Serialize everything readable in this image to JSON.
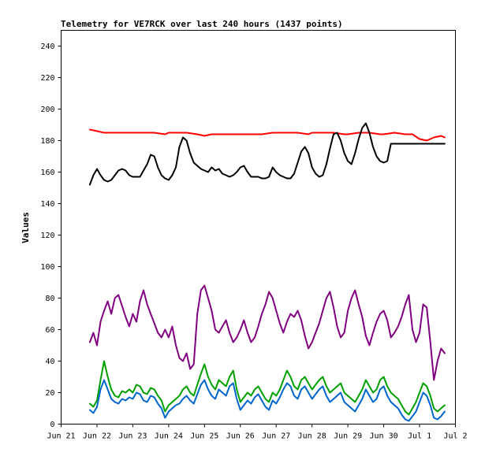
{
  "chart_data": {
    "type": "line",
    "title": "Telemetry for VE7RCK over last 240 hours (1437 points)",
    "xlabel": "",
    "ylabel": "Values",
    "ylim": [
      0,
      250
    ],
    "yticks": [
      0,
      20,
      40,
      60,
      80,
      100,
      120,
      140,
      160,
      180,
      200,
      220,
      240
    ],
    "xlim": [
      0,
      11
    ],
    "xticks": [
      {
        "x": 0,
        "label": "Jun 21"
      },
      {
        "x": 1,
        "label": "Jun 22"
      },
      {
        "x": 2,
        "label": "Jun 23"
      },
      {
        "x": 3,
        "label": "Jun 24"
      },
      {
        "x": 4,
        "label": "Jun 25"
      },
      {
        "x": 5,
        "label": "Jun 26"
      },
      {
        "x": 6,
        "label": "Jun 27"
      },
      {
        "x": 7,
        "label": "Jun 28"
      },
      {
        "x": 8,
        "label": "Jun 29"
      },
      {
        "x": 9,
        "label": "Jun 30"
      },
      {
        "x": 10,
        "label": "Jul 1"
      },
      {
        "x": 11,
        "label": "Jul 2"
      }
    ],
    "grid": false,
    "legend": "none",
    "series": [
      {
        "color": "#ff0000",
        "x": [
          0.8,
          1.0,
          1.2,
          1.5,
          1.8,
          2.0,
          2.3,
          2.6,
          2.9,
          3.0,
          3.2,
          3.5,
          3.8,
          4.0,
          4.2,
          4.5,
          4.8,
          5.0,
          5.3,
          5.6,
          5.9,
          6.0,
          6.3,
          6.6,
          6.9,
          7.0,
          7.3,
          7.6,
          7.9,
          8.0,
          8.3,
          8.6,
          8.9,
          9.0,
          9.3,
          9.6,
          9.8,
          10.0,
          10.2,
          10.4,
          10.6,
          10.7
        ],
        "y": [
          187,
          186,
          185,
          185,
          185,
          185,
          185,
          185,
          184,
          185,
          185,
          185,
          184,
          183,
          184,
          184,
          184,
          184,
          184,
          184,
          185,
          185,
          185,
          185,
          184,
          185,
          185,
          185,
          184,
          184,
          185,
          185,
          184,
          184,
          185,
          184,
          184,
          181,
          180,
          182,
          183,
          182
        ]
      },
      {
        "color": "#000000",
        "x": [
          0.8,
          0.9,
          1.0,
          1.1,
          1.2,
          1.3,
          1.4,
          1.5,
          1.6,
          1.7,
          1.8,
          1.9,
          2.0,
          2.1,
          2.2,
          2.3,
          2.4,
          2.5,
          2.6,
          2.7,
          2.8,
          2.9,
          3.0,
          3.1,
          3.2,
          3.3,
          3.4,
          3.5,
          3.6,
          3.7,
          3.8,
          3.9,
          4.0,
          4.1,
          4.2,
          4.3,
          4.4,
          4.5,
          4.6,
          4.7,
          4.8,
          4.9,
          5.0,
          5.1,
          5.2,
          5.3,
          5.4,
          5.5,
          5.6,
          5.7,
          5.8,
          5.9,
          6.0,
          6.1,
          6.2,
          6.3,
          6.4,
          6.5,
          6.6,
          6.7,
          6.8,
          6.9,
          7.0,
          7.1,
          7.2,
          7.3,
          7.4,
          7.5,
          7.6,
          7.7,
          7.8,
          7.9,
          8.0,
          8.1,
          8.2,
          8.3,
          8.4,
          8.5,
          8.6,
          8.7,
          8.8,
          8.9,
          9.0,
          9.1,
          9.2,
          9.3,
          9.4,
          9.5,
          9.6,
          9.7,
          9.8,
          9.9,
          10.0,
          10.1,
          10.2,
          10.3,
          10.4,
          10.5,
          10.6,
          10.7
        ],
        "y": [
          152,
          158,
          162,
          158,
          155,
          154,
          155,
          158,
          161,
          162,
          161,
          158,
          157,
          157,
          157,
          161,
          165,
          171,
          170,
          163,
          158,
          156,
          155,
          158,
          163,
          176,
          182,
          180,
          172,
          166,
          164,
          162,
          161,
          160,
          163,
          161,
          162,
          159,
          158,
          157,
          158,
          160,
          163,
          164,
          160,
          157,
          157,
          157,
          156,
          156,
          157,
          163,
          160,
          158,
          157,
          156,
          156,
          159,
          166,
          173,
          176,
          172,
          163,
          159,
          157,
          158,
          165,
          175,
          184,
          185,
          180,
          172,
          167,
          165,
          172,
          181,
          188,
          191,
          185,
          176,
          170,
          167,
          166,
          167,
          178,
          178,
          178,
          178,
          178,
          178,
          178,
          178,
          178,
          178,
          178,
          178,
          178,
          178,
          178,
          178
        ]
      },
      {
        "color": "#800080",
        "x": [
          0.8,
          0.9,
          1.0,
          1.1,
          1.2,
          1.3,
          1.4,
          1.5,
          1.6,
          1.7,
          1.8,
          1.9,
          2.0,
          2.1,
          2.2,
          2.3,
          2.4,
          2.5,
          2.6,
          2.7,
          2.8,
          2.9,
          3.0,
          3.1,
          3.2,
          3.3,
          3.4,
          3.5,
          3.6,
          3.7,
          3.8,
          3.9,
          4.0,
          4.1,
          4.2,
          4.3,
          4.4,
          4.5,
          4.6,
          4.7,
          4.8,
          4.9,
          5.0,
          5.1,
          5.2,
          5.3,
          5.4,
          5.5,
          5.6,
          5.7,
          5.8,
          5.9,
          6.0,
          6.1,
          6.2,
          6.3,
          6.4,
          6.5,
          6.6,
          6.7,
          6.8,
          6.9,
          7.0,
          7.1,
          7.2,
          7.3,
          7.4,
          7.5,
          7.6,
          7.7,
          7.8,
          7.9,
          8.0,
          8.1,
          8.2,
          8.3,
          8.4,
          8.5,
          8.6,
          8.7,
          8.8,
          8.9,
          9.0,
          9.1,
          9.2,
          9.3,
          9.4,
          9.5,
          9.6,
          9.7,
          9.8,
          9.9,
          10.0,
          10.1,
          10.2,
          10.3,
          10.4,
          10.5,
          10.6,
          10.7
        ],
        "y": [
          52,
          58,
          50,
          65,
          72,
          78,
          70,
          80,
          82,
          75,
          68,
          62,
          70,
          65,
          78,
          85,
          76,
          70,
          64,
          58,
          55,
          60,
          55,
          62,
          50,
          42,
          40,
          45,
          35,
          38,
          70,
          85,
          88,
          80,
          72,
          60,
          58,
          62,
          66,
          58,
          52,
          55,
          60,
          66,
          58,
          52,
          55,
          62,
          70,
          76,
          84,
          80,
          72,
          64,
          58,
          65,
          70,
          68,
          72,
          66,
          56,
          48,
          52,
          58,
          64,
          72,
          80,
          84,
          74,
          62,
          55,
          58,
          72,
          80,
          85,
          76,
          68,
          56,
          50,
          58,
          65,
          70,
          72,
          66,
          55,
          58,
          62,
          68,
          76,
          82,
          60,
          52,
          58,
          76,
          74,
          52,
          28,
          40,
          48,
          45
        ]
      },
      {
        "color": "#00a000",
        "x": [
          0.8,
          0.9,
          1.0,
          1.1,
          1.2,
          1.3,
          1.4,
          1.5,
          1.6,
          1.7,
          1.8,
          1.9,
          2.0,
          2.1,
          2.2,
          2.3,
          2.4,
          2.5,
          2.6,
          2.7,
          2.8,
          2.9,
          3.0,
          3.1,
          3.2,
          3.3,
          3.4,
          3.5,
          3.6,
          3.7,
          3.8,
          3.9,
          4.0,
          4.1,
          4.2,
          4.3,
          4.4,
          4.5,
          4.6,
          4.7,
          4.8,
          4.9,
          5.0,
          5.1,
          5.2,
          5.3,
          5.4,
          5.5,
          5.6,
          5.7,
          5.8,
          5.9,
          6.0,
          6.1,
          6.2,
          6.3,
          6.4,
          6.5,
          6.6,
          6.7,
          6.8,
          6.9,
          7.0,
          7.1,
          7.2,
          7.3,
          7.4,
          7.5,
          7.6,
          7.7,
          7.8,
          7.9,
          8.0,
          8.1,
          8.2,
          8.3,
          8.4,
          8.5,
          8.6,
          8.7,
          8.8,
          8.9,
          9.0,
          9.1,
          9.2,
          9.3,
          9.4,
          9.5,
          9.6,
          9.7,
          9.8,
          9.9,
          10.0,
          10.1,
          10.2,
          10.3,
          10.4,
          10.5,
          10.6,
          10.7
        ],
        "y": [
          13,
          11,
          15,
          28,
          40,
          30,
          22,
          18,
          17,
          21,
          20,
          22,
          20,
          25,
          24,
          20,
          19,
          23,
          22,
          18,
          15,
          8,
          12,
          14,
          16,
          18,
          22,
          24,
          20,
          18,
          25,
          32,
          38,
          30,
          25,
          22,
          28,
          26,
          24,
          30,
          34,
          22,
          14,
          17,
          20,
          18,
          22,
          24,
          20,
          16,
          14,
          20,
          18,
          22,
          28,
          34,
          30,
          24,
          22,
          28,
          30,
          26,
          22,
          25,
          28,
          30,
          24,
          20,
          22,
          24,
          26,
          20,
          18,
          16,
          14,
          18,
          22,
          28,
          24,
          20,
          22,
          28,
          30,
          24,
          20,
          18,
          16,
          12,
          8,
          6,
          10,
          14,
          20,
          26,
          24,
          18,
          10,
          8,
          10,
          12
        ]
      },
      {
        "color": "#0066cc",
        "x": [
          0.8,
          0.9,
          1.0,
          1.1,
          1.2,
          1.3,
          1.4,
          1.5,
          1.6,
          1.7,
          1.8,
          1.9,
          2.0,
          2.1,
          2.2,
          2.3,
          2.4,
          2.5,
          2.6,
          2.7,
          2.8,
          2.9,
          3.0,
          3.1,
          3.2,
          3.3,
          3.4,
          3.5,
          3.6,
          3.7,
          3.8,
          3.9,
          4.0,
          4.1,
          4.2,
          4.3,
          4.4,
          4.5,
          4.6,
          4.7,
          4.8,
          4.9,
          5.0,
          5.1,
          5.2,
          5.3,
          5.4,
          5.5,
          5.6,
          5.7,
          5.8,
          5.9,
          6.0,
          6.1,
          6.2,
          6.3,
          6.4,
          6.5,
          6.6,
          6.7,
          6.8,
          6.9,
          7.0,
          7.1,
          7.2,
          7.3,
          7.4,
          7.5,
          7.6,
          7.7,
          7.8,
          7.9,
          8.0,
          8.1,
          8.2,
          8.3,
          8.4,
          8.5,
          8.6,
          8.7,
          8.8,
          8.9,
          9.0,
          9.1,
          9.2,
          9.3,
          9.4,
          9.5,
          9.6,
          9.7,
          9.8,
          9.9,
          10.0,
          10.1,
          10.2,
          10.3,
          10.4,
          10.5,
          10.6,
          10.7
        ],
        "y": [
          9,
          7,
          11,
          22,
          28,
          22,
          16,
          14,
          13,
          16,
          15,
          17,
          16,
          20,
          19,
          15,
          14,
          18,
          17,
          13,
          10,
          4,
          8,
          10,
          12,
          13,
          16,
          18,
          15,
          13,
          19,
          25,
          28,
          22,
          18,
          16,
          22,
          20,
          18,
          24,
          26,
          16,
          9,
          12,
          15,
          13,
          17,
          19,
          15,
          11,
          9,
          15,
          13,
          17,
          22,
          26,
          24,
          18,
          16,
          22,
          24,
          20,
          16,
          19,
          22,
          24,
          18,
          14,
          16,
          18,
          20,
          14,
          12,
          10,
          8,
          12,
          16,
          22,
          18,
          14,
          16,
          22,
          24,
          18,
          14,
          12,
          10,
          6,
          3,
          2,
          5,
          8,
          14,
          20,
          18,
          12,
          4,
          3,
          5,
          8
        ]
      }
    ]
  }
}
